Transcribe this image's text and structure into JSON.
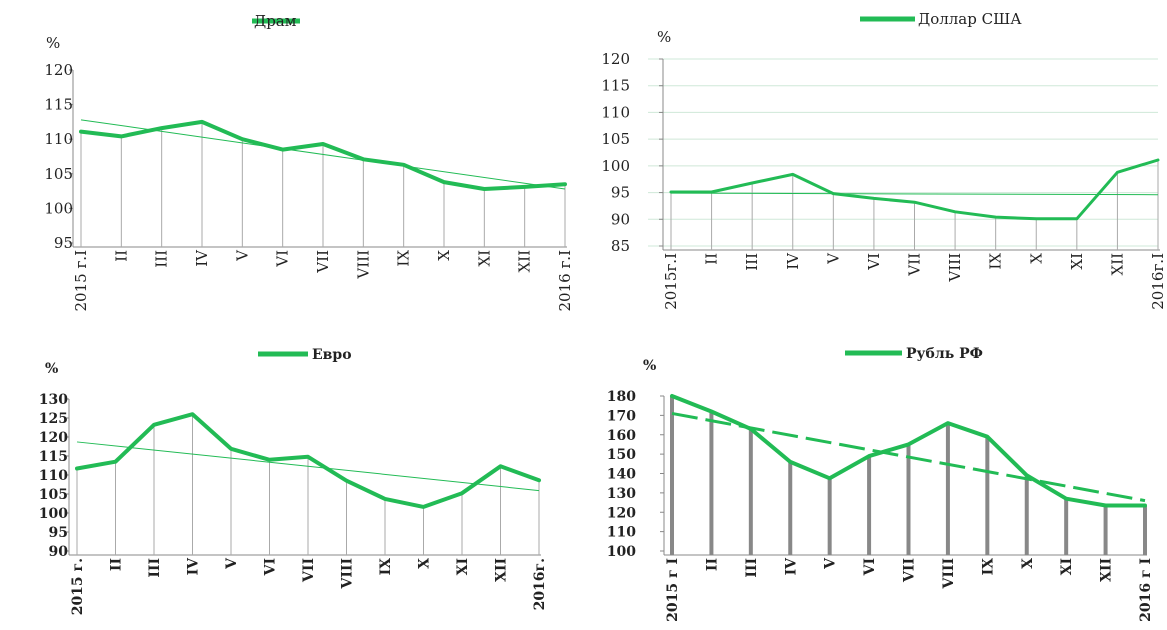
{
  "colors": {
    "line": "#22bb55",
    "grid": "#aaaaaa",
    "axis": "#888888",
    "drop_bold": "#888888",
    "text": "#222222"
  },
  "chart_data": [
    {
      "type": "line",
      "legend": "Драм",
      "unit": "%",
      "categories": [
        "2015 г.I",
        "II",
        "III",
        "IV",
        "V",
        "VI",
        "VII",
        "VIII",
        "IX",
        "X",
        "XI",
        "XII",
        "2016 г.I"
      ],
      "series": [
        {
          "name": "Драм",
          "values": [
            111.1,
            110.4,
            111.6,
            112.5,
            110.0,
            108.5,
            109.3,
            107.1,
            106.3,
            103.8,
            102.8,
            103.1,
            103.5
          ]
        }
      ],
      "trend": [
        112.8,
        102.8
      ],
      "y_ticks": [
        "95",
        "100",
        "105",
        "110",
        "115",
        "120"
      ],
      "ylim": [
        95,
        120
      ],
      "horizontal_grid": false,
      "drop_lines": true,
      "legend_position": "top"
    },
    {
      "type": "line",
      "legend": "Доллар США",
      "unit": "%",
      "categories": [
        "2015г.I",
        "II",
        "III",
        "IV",
        "V",
        "VI",
        "VII",
        "VIII",
        "IX",
        "X",
        "XI",
        "XII",
        "2016г.I"
      ],
      "series": [
        {
          "name": "Доллар США",
          "values": [
            95.1,
            95.1,
            96.8,
            98.4,
            94.8,
            93.9,
            93.2,
            91.4,
            90.4,
            90.1,
            90.1,
            98.8,
            101.1
          ]
        }
      ],
      "trend": [
        94.9,
        94.6
      ],
      "y_ticks": [
        "85",
        "90",
        "95",
        "100",
        "105",
        "110",
        "115",
        "120"
      ],
      "ylim": [
        85,
        120
      ],
      "horizontal_grid": true,
      "drop_lines": true,
      "legend_position": "top"
    },
    {
      "type": "line",
      "legend": "Евро",
      "unit": "%",
      "categories": [
        "2015 г.",
        "II",
        "III",
        "IV",
        "V",
        "VI",
        "VII",
        "VIII",
        "IX",
        "X",
        "XI",
        "XII",
        "2016г."
      ],
      "series": [
        {
          "name": "Евро",
          "values": [
            111.7,
            113.5,
            123.2,
            126.0,
            116.9,
            114.0,
            114.8,
            108.5,
            103.7,
            101.6,
            105.2,
            112.3,
            108.6
          ]
        }
      ],
      "trend": [
        118.7,
        105.9
      ],
      "y_ticks": [
        "90",
        "95",
        "100",
        "105",
        "110",
        "115",
        "120",
        "125",
        "130"
      ],
      "ylim": [
        90,
        130
      ],
      "horizontal_grid": false,
      "drop_lines": true,
      "legend_position": "top"
    },
    {
      "type": "line",
      "legend": "Рубль РФ",
      "unit": "%",
      "categories": [
        "2015 г I",
        "II",
        "III",
        "IV",
        "V",
        "VI",
        "VII",
        "VIII",
        "IX",
        "X",
        "XI",
        "XII",
        "2016 г I"
      ],
      "series": [
        {
          "name": "Рубль РФ",
          "values": [
            180.0,
            172.0,
            163.0,
            146.0,
            137.5,
            149.0,
            155.0,
            166.0,
            159.0,
            139.0,
            127.0,
            123.5,
            123.5
          ]
        }
      ],
      "trend": [
        171.0,
        126.0
      ],
      "y_ticks": [
        "100",
        "110",
        "120",
        "130",
        "140",
        "150",
        "160",
        "170",
        "180"
      ],
      "ylim": [
        100,
        180
      ],
      "horizontal_grid": false,
      "drop_lines": true,
      "legend_position": "top"
    }
  ]
}
